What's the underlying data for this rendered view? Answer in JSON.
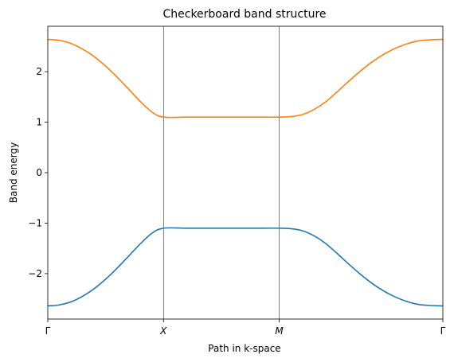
{
  "chart_data": {
    "type": "line",
    "title": "Checkerboard band structure",
    "xlabel": "Path in k-space",
    "ylabel": "Band energy",
    "xlim": [
      0,
      3.4142
    ],
    "ylim": [
      -2.9,
      2.9
    ],
    "x_ticks": [
      {
        "value": 0,
        "label": "Γ",
        "italic": false
      },
      {
        "value": 1,
        "label": "X",
        "italic": true
      },
      {
        "value": 2,
        "label": "M",
        "italic": true
      },
      {
        "value": 3.4142,
        "label": "Γ",
        "italic": false
      }
    ],
    "y_ticks": [
      {
        "value": 2,
        "label": "2"
      },
      {
        "value": 1,
        "label": "1"
      },
      {
        "value": 0,
        "label": "0"
      },
      {
        "value": -1,
        "label": "−1"
      },
      {
        "value": -2,
        "label": "−2"
      }
    ],
    "vlines": [
      1,
      2
    ],
    "grid": false,
    "series": [
      {
        "color": "#1f77b4",
        "x": [
          0,
          0.1,
          0.2,
          0.3,
          0.4,
          0.5,
          0.6,
          0.7,
          0.8,
          0.9,
          1.0,
          1.2,
          1.4,
          1.6,
          1.8,
          2.0,
          2.1,
          2.2,
          2.3,
          2.4,
          2.5,
          2.6,
          2.7,
          2.8,
          2.9,
          3.0,
          3.1,
          3.2,
          3.3,
          3.4142
        ],
        "y": [
          -2.64,
          -2.62,
          -2.56,
          -2.45,
          -2.3,
          -2.11,
          -1.89,
          -1.65,
          -1.41,
          -1.2,
          -1.1,
          -1.1,
          -1.1,
          -1.1,
          -1.1,
          -1.1,
          -1.11,
          -1.15,
          -1.25,
          -1.4,
          -1.6,
          -1.81,
          -2.01,
          -2.19,
          -2.34,
          -2.46,
          -2.55,
          -2.61,
          -2.63,
          -2.64
        ]
      },
      {
        "color": "#ff7f0e",
        "x": [
          0,
          0.1,
          0.2,
          0.3,
          0.4,
          0.5,
          0.6,
          0.7,
          0.8,
          0.9,
          1.0,
          1.2,
          1.4,
          1.6,
          1.8,
          2.0,
          2.1,
          2.2,
          2.3,
          2.4,
          2.5,
          2.6,
          2.7,
          2.8,
          2.9,
          3.0,
          3.1,
          3.2,
          3.3,
          3.4142
        ],
        "y": [
          2.64,
          2.62,
          2.56,
          2.45,
          2.3,
          2.11,
          1.89,
          1.65,
          1.41,
          1.2,
          1.1,
          1.1,
          1.1,
          1.1,
          1.1,
          1.1,
          1.11,
          1.15,
          1.25,
          1.4,
          1.6,
          1.81,
          2.01,
          2.19,
          2.34,
          2.46,
          2.55,
          2.61,
          2.63,
          2.64
        ]
      }
    ]
  }
}
